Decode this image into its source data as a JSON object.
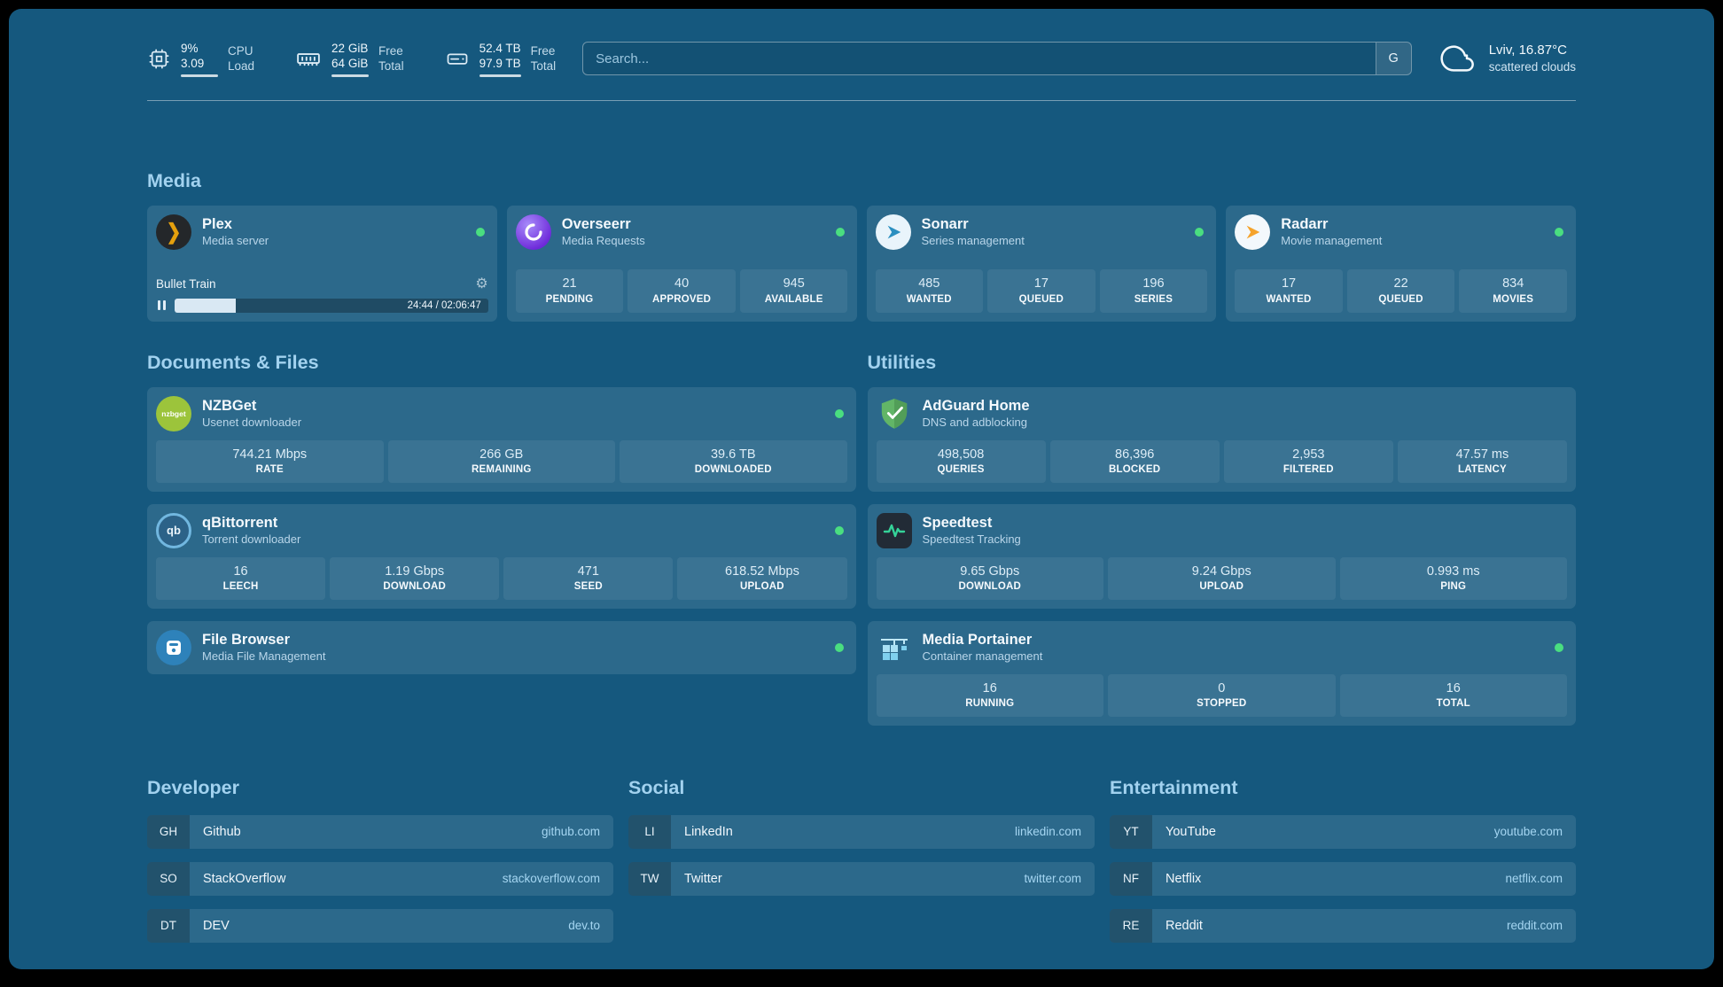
{
  "theme": {
    "background": "#15587e",
    "card": "rgba(255,255,255,0.10)",
    "tile": "rgba(255,255,255,0.07)",
    "heading": "#a2d2ef",
    "subtitle": "#b9d6ea",
    "link": "#a5d6f2",
    "status-green": "#4ade80"
  },
  "header": {
    "resources": [
      {
        "icon": "cpu-icon",
        "top_value": "9%",
        "bottom_value": "3.09",
        "top_label": "CPU",
        "bottom_label": "Load"
      },
      {
        "icon": "memory-icon",
        "top_value": "22 GiB",
        "bottom_value": "64 GiB",
        "top_label": "Free",
        "bottom_label": "Total"
      },
      {
        "icon": "disk-icon",
        "top_value": "52.4 TB",
        "bottom_value": "97.9 TB",
        "top_label": "Free",
        "bottom_label": "Total"
      }
    ],
    "search": {
      "placeholder": "Search...",
      "button_label": "G"
    },
    "weather": {
      "icon": "cloud-icon",
      "location": "Lviv, 16.87°C",
      "condition": "scattered clouds"
    }
  },
  "sections": {
    "media": {
      "title": "Media",
      "cards": [
        {
          "icon": "plex-icon",
          "title": "Plex",
          "subtitle": "Media server",
          "status": "online",
          "now_playing": {
            "title": "Bullet Train",
            "time": "24:44 / 02:06:47",
            "progress_percent": 19.5
          }
        },
        {
          "icon": "overseerr-icon",
          "title": "Overseerr",
          "subtitle": "Media Requests",
          "status": "online",
          "stats": [
            {
              "value": "21",
              "label": "PENDING"
            },
            {
              "value": "40",
              "label": "APPROVED"
            },
            {
              "value": "945",
              "label": "AVAILABLE"
            }
          ]
        },
        {
          "icon": "sonarr-icon",
          "title": "Sonarr",
          "subtitle": "Series management",
          "status": "online",
          "stats": [
            {
              "value": "485",
              "label": "WANTED"
            },
            {
              "value": "17",
              "label": "QUEUED"
            },
            {
              "value": "196",
              "label": "SERIES"
            }
          ]
        },
        {
          "icon": "radarr-icon",
          "title": "Radarr",
          "subtitle": "Movie management",
          "status": "online",
          "stats": [
            {
              "value": "17",
              "label": "WANTED"
            },
            {
              "value": "22",
              "label": "QUEUED"
            },
            {
              "value": "834",
              "label": "MOVIES"
            }
          ]
        }
      ]
    },
    "documents": {
      "title": "Documents & Files",
      "cards": [
        {
          "icon": "nzbget-icon",
          "title": "NZBGet",
          "subtitle": "Usenet downloader",
          "status": "online",
          "stats": [
            {
              "value": "744.21 Mbps",
              "label": "RATE"
            },
            {
              "value": "266 GB",
              "label": "REMAINING"
            },
            {
              "value": "39.6 TB",
              "label": "DOWNLOADED"
            }
          ]
        },
        {
          "icon": "qbittorrent-icon",
          "title": "qBittorrent",
          "subtitle": "Torrent downloader",
          "status": "online",
          "stats": [
            {
              "value": "16",
              "label": "LEECH"
            },
            {
              "value": "1.19 Gbps",
              "label": "DOWNLOAD"
            },
            {
              "value": "471",
              "label": "SEED"
            },
            {
              "value": "618.52 Mbps",
              "label": "UPLOAD"
            }
          ]
        },
        {
          "icon": "filebrowser-icon",
          "title": "File Browser",
          "subtitle": "Media File Management",
          "status": "online",
          "stats": []
        }
      ]
    },
    "utilities": {
      "title": "Utilities",
      "cards": [
        {
          "icon": "adguard-icon",
          "title": "AdGuard Home",
          "subtitle": "DNS and adblocking",
          "stats": [
            {
              "value": "498,508",
              "label": "QUERIES"
            },
            {
              "value": "86,396",
              "label": "BLOCKED"
            },
            {
              "value": "2,953",
              "label": "FILTERED"
            },
            {
              "value": "47.57 ms",
              "label": "LATENCY"
            }
          ]
        },
        {
          "icon": "speedtest-icon",
          "title": "Speedtest",
          "subtitle": "Speedtest Tracking",
          "stats": [
            {
              "value": "9.65 Gbps",
              "label": "DOWNLOAD"
            },
            {
              "value": "9.24 Gbps",
              "label": "UPLOAD"
            },
            {
              "value": "0.993 ms",
              "label": "PING"
            }
          ]
        },
        {
          "icon": "portainer-icon",
          "title": "Media Portainer",
          "subtitle": "Container management",
          "status": "online",
          "stats": [
            {
              "value": "16",
              "label": "RUNNING"
            },
            {
              "value": "0",
              "label": "STOPPED"
            },
            {
              "value": "16",
              "label": "TOTAL"
            }
          ]
        }
      ]
    }
  },
  "bookmarks": [
    {
      "title": "Developer",
      "items": [
        {
          "abbr": "GH",
          "name": "Github",
          "url": "github.com"
        },
        {
          "abbr": "SO",
          "name": "StackOverflow",
          "url": "stackoverflow.com"
        },
        {
          "abbr": "DT",
          "name": "DEV",
          "url": "dev.to"
        }
      ]
    },
    {
      "title": "Social",
      "items": [
        {
          "abbr": "LI",
          "name": "LinkedIn",
          "url": "linkedin.com"
        },
        {
          "abbr": "TW",
          "name": "Twitter",
          "url": "twitter.com"
        }
      ]
    },
    {
      "title": "Entertainment",
      "items": [
        {
          "abbr": "YT",
          "name": "YouTube",
          "url": "youtube.com"
        },
        {
          "abbr": "NF",
          "name": "Netflix",
          "url": "netflix.com"
        },
        {
          "abbr": "RE",
          "name": "Reddit",
          "url": "reddit.com"
        }
      ]
    }
  ]
}
